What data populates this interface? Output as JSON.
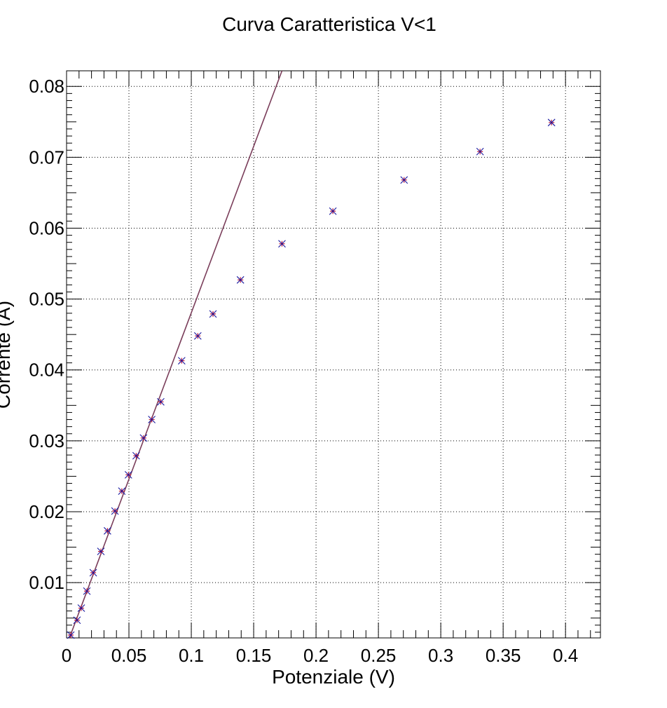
{
  "chart_data": {
    "type": "scatter",
    "title": "Curva Caratteristica V<1",
    "xlabel": "Potenziale (V)",
    "ylabel": "Corrente (A)",
    "xlim": [
      0,
      0.428
    ],
    "ylim": [
      0.0022,
      0.0822
    ],
    "xticks": [
      0,
      0.05,
      0.1,
      0.15,
      0.2,
      0.25,
      0.3,
      0.35,
      0.4
    ],
    "xtick_labels": [
      "0",
      "0.05",
      "0.1",
      "0.15",
      "0.2",
      "0.25",
      "0.3",
      "0.35",
      "0.4"
    ],
    "yticks": [
      0.01,
      0.02,
      0.03,
      0.04,
      0.05,
      0.06,
      0.07,
      0.08
    ],
    "ytick_labels": [
      "0.01",
      "0.02",
      "0.03",
      "0.04",
      "0.05",
      "0.06",
      "0.07",
      "0.08"
    ],
    "grid": true,
    "colors": {
      "marker": "#1a1aa0",
      "error_bar": "#c0183a",
      "fit_line": "#7a3d5a"
    },
    "series": [
      {
        "marker": "x",
        "x": [
          0.0034,
          0.0084,
          0.0118,
          0.0163,
          0.0214,
          0.0275,
          0.0328,
          0.0388,
          0.0443,
          0.0496,
          0.0558,
          0.0617,
          0.0683,
          0.0755,
          0.0923,
          0.1052,
          0.1174,
          0.1394,
          0.1727,
          0.2135,
          0.2706,
          0.3315,
          0.3888
        ],
        "y": [
          0.0026,
          0.0047,
          0.0064,
          0.0088,
          0.0114,
          0.0144,
          0.0173,
          0.0201,
          0.0229,
          0.0252,
          0.0279,
          0.0304,
          0.033,
          0.0355,
          0.0413,
          0.0448,
          0.0479,
          0.0527,
          0.0578,
          0.0624,
          0.0668,
          0.0708,
          0.0749
        ]
      }
    ],
    "fit": {
      "type": "line",
      "x": [
        0.0023,
        0.1727
      ],
      "y": [
        0.0022,
        0.0822
      ]
    }
  }
}
